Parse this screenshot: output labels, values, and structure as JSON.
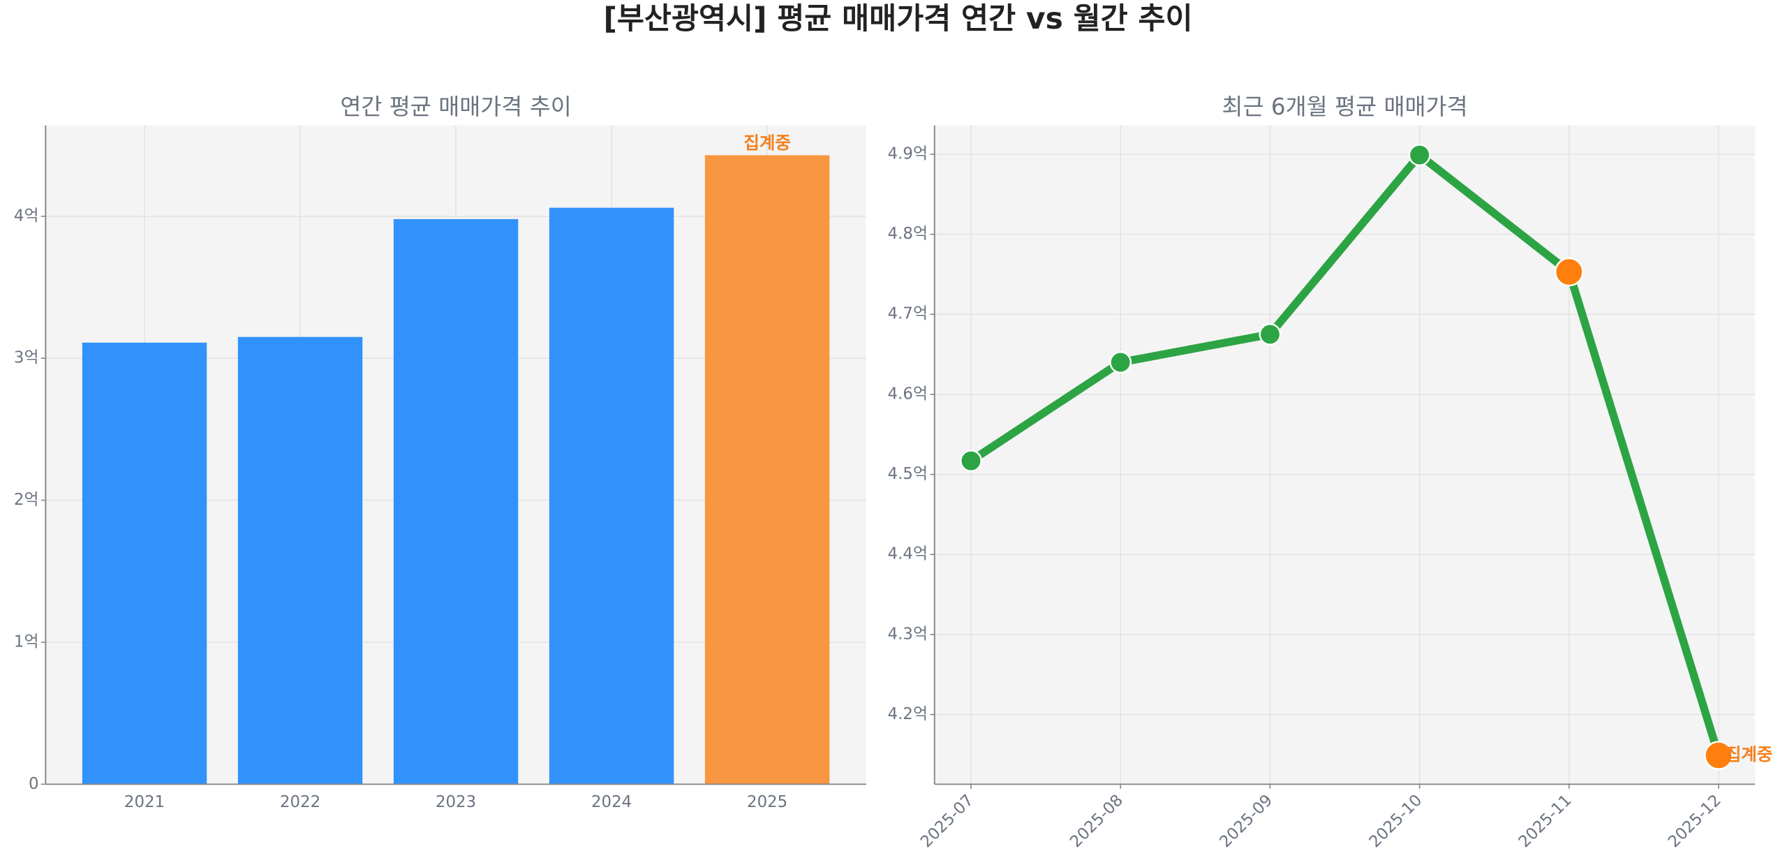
{
  "title": "[부산광역시] 평균 매매가격 연간 vs 월간 추이",
  "chart_data": [
    {
      "type": "bar",
      "title": "연간 평균 매매가격 추이",
      "categories": [
        "2021",
        "2022",
        "2023",
        "2024",
        "2025"
      ],
      "values": [
        3.11,
        3.15,
        3.98,
        4.06,
        4.43
      ],
      "colors": [
        "#3192fc",
        "#3192fc",
        "#3192fc",
        "#3192fc",
        "#f99641"
      ],
      "annotation": "집계중",
      "annotation_color": "#f57e1a",
      "ylim": [
        0,
        4.64
      ],
      "yticks": [
        0,
        {
          "value": 1,
          "label": "1억"
        },
        {
          "value": 2,
          "label": "2억"
        },
        {
          "value": 3,
          "label": "3억"
        },
        {
          "value": 4,
          "label": "4억"
        }
      ],
      "grid": true
    },
    {
      "type": "line",
      "title": "최근 6개월 평균 매매가격",
      "x": [
        "2025-07",
        "2025-08",
        "2025-09",
        "2025-10",
        "2025-11",
        "2025-12"
      ],
      "values": [
        4.517,
        4.64,
        4.675,
        4.899,
        4.753,
        4.149
      ],
      "color": "#2ca444",
      "marker_colors": [
        "#2ca444",
        "#2ca444",
        "#2ca444",
        "#2ca444",
        "#ff7f0e",
        "#ff7f0e"
      ],
      "annotation": "집계중",
      "annotation_color": "#f57e1a",
      "ylim": [
        4.113,
        4.936
      ],
      "yticks": [
        {
          "value": 4.2,
          "label": "4.2억"
        },
        {
          "value": 4.3,
          "label": "4.3억"
        },
        {
          "value": 4.4,
          "label": "4.4억"
        },
        {
          "value": 4.5,
          "label": "4.5억"
        },
        {
          "value": 4.6,
          "label": "4.6억"
        },
        {
          "value": 4.7,
          "label": "4.7억"
        },
        {
          "value": 4.8,
          "label": "4.8억"
        },
        {
          "value": 4.9,
          "label": "4.9억"
        }
      ],
      "grid": true
    }
  ]
}
